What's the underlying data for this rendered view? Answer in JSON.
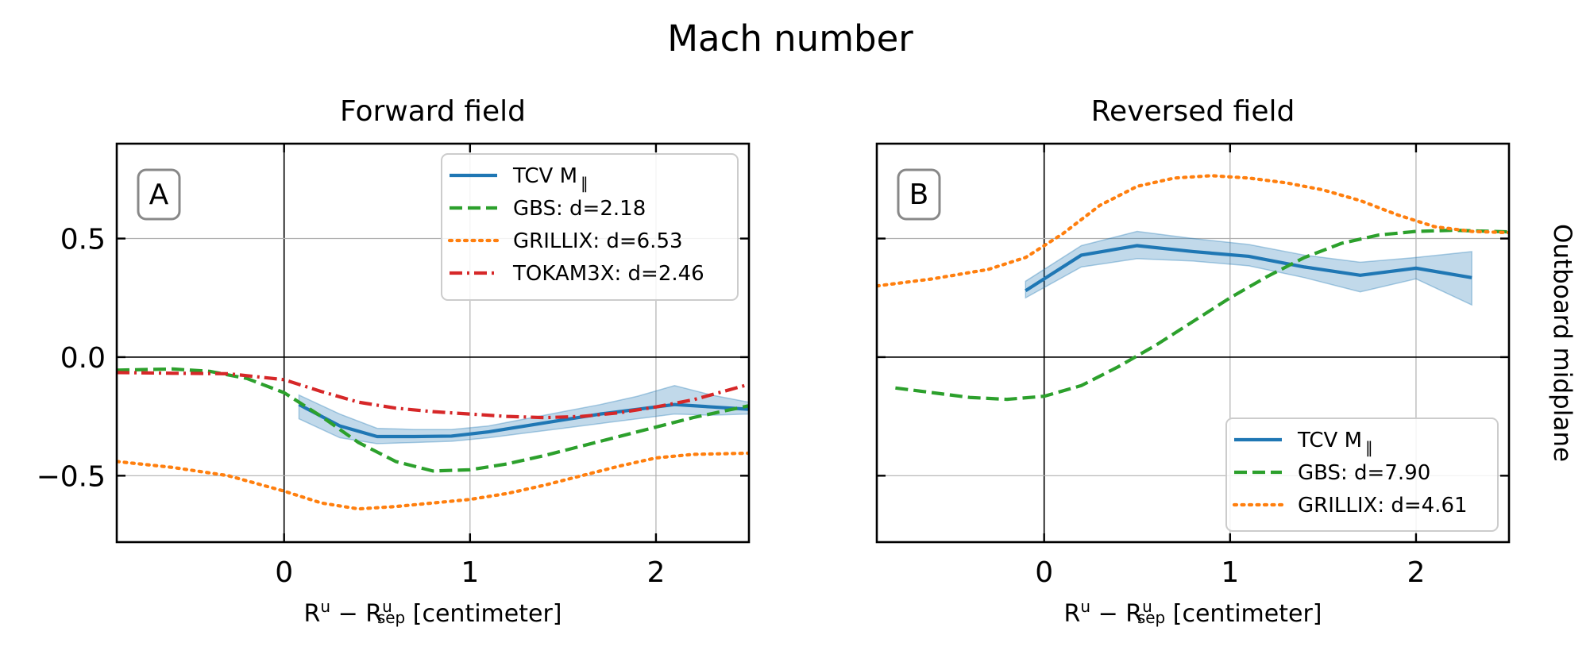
{
  "figure": {
    "title": "Mach number",
    "row_label": "Outboard midplane",
    "xlabel": {
      "base": "R",
      "sup1": "u",
      "minus": " − R",
      "sup2": "u",
      "sub2": "sep",
      "unit": " [centimeter]"
    }
  },
  "colors": {
    "tcv": "#1f77b4",
    "tcv_band": "#a9c8e4",
    "gbs": "#2ca02c",
    "grillix": "#ff7f0e",
    "tokam3x": "#d62728"
  },
  "chart_data": [
    {
      "type": "line",
      "panel_label": "A",
      "title": "Forward field",
      "xlim": [
        -0.9,
        2.5
      ],
      "ylim": [
        -0.78,
        0.9
      ],
      "xticks": [
        0,
        1,
        2
      ],
      "xtick_labels": [
        "0",
        "1",
        "2"
      ],
      "yticks": [
        -0.5,
        0.0,
        0.5
      ],
      "ytick_labels": [
        "−0.5",
        "0.0",
        "0.5"
      ],
      "grid": true,
      "legend_position": "upper-right",
      "series": [
        {
          "name": "TCV M",
          "name_sub": "∥",
          "style": "solid",
          "color_key": "tcv",
          "x": [
            0.08,
            0.3,
            0.5,
            0.7,
            0.9,
            1.1,
            1.3,
            1.5,
            1.7,
            1.9,
            2.1,
            2.3,
            2.5
          ],
          "y": [
            -0.2,
            -0.29,
            -0.335,
            -0.335,
            -0.333,
            -0.315,
            -0.29,
            -0.265,
            -0.24,
            -0.22,
            -0.2,
            -0.21,
            -0.22
          ],
          "band_low": [
            -0.26,
            -0.34,
            -0.365,
            -0.36,
            -0.355,
            -0.34,
            -0.32,
            -0.3,
            -0.28,
            -0.26,
            -0.24,
            -0.245,
            -0.24
          ],
          "band_high": [
            -0.16,
            -0.24,
            -0.3,
            -0.305,
            -0.305,
            -0.29,
            -0.26,
            -0.23,
            -0.2,
            -0.165,
            -0.12,
            -0.16,
            -0.19
          ]
        },
        {
          "name": "GBS: d=2.18",
          "style": "dashed",
          "color_key": "gbs",
          "x": [
            -0.9,
            -0.6,
            -0.4,
            -0.2,
            0.0,
            0.2,
            0.4,
            0.6,
            0.8,
            1.0,
            1.2,
            1.4,
            1.6,
            1.8,
            2.0,
            2.2,
            2.5
          ],
          "y": [
            -0.055,
            -0.05,
            -0.06,
            -0.09,
            -0.15,
            -0.25,
            -0.36,
            -0.44,
            -0.48,
            -0.475,
            -0.45,
            -0.415,
            -0.375,
            -0.335,
            -0.295,
            -0.255,
            -0.205
          ]
        },
        {
          "name": "GRILLIX: d=6.53",
          "style": "dotted",
          "color_key": "grillix",
          "x": [
            -0.9,
            -0.6,
            -0.3,
            0.0,
            0.2,
            0.4,
            0.6,
            0.8,
            1.0,
            1.2,
            1.4,
            1.6,
            1.8,
            2.0,
            2.2,
            2.5
          ],
          "y": [
            -0.44,
            -0.465,
            -0.5,
            -0.565,
            -0.615,
            -0.64,
            -0.63,
            -0.615,
            -0.6,
            -0.575,
            -0.54,
            -0.5,
            -0.46,
            -0.425,
            -0.41,
            -0.405
          ]
        },
        {
          "name": "TOKAM3X: d=2.46",
          "style": "dashdot",
          "color_key": "tokam3x",
          "x": [
            -0.9,
            -0.6,
            -0.3,
            0.0,
            0.2,
            0.4,
            0.6,
            0.8,
            1.0,
            1.2,
            1.4,
            1.6,
            1.8,
            2.0,
            2.2,
            2.5
          ],
          "y": [
            -0.065,
            -0.068,
            -0.07,
            -0.095,
            -0.145,
            -0.19,
            -0.215,
            -0.23,
            -0.24,
            -0.25,
            -0.255,
            -0.25,
            -0.235,
            -0.21,
            -0.18,
            -0.115
          ]
        }
      ]
    },
    {
      "type": "line",
      "panel_label": "B",
      "title": "Reversed field",
      "xlim": [
        -0.9,
        2.5
      ],
      "ylim": [
        -0.78,
        0.9
      ],
      "xticks": [
        0,
        1,
        2
      ],
      "xtick_labels": [
        "0",
        "1",
        "2"
      ],
      "yticks": [
        -0.5,
        0.0,
        0.5
      ],
      "ytick_labels": [
        "",
        "",
        ""
      ],
      "grid": true,
      "legend_position": "lower-right",
      "series": [
        {
          "name": "TCV M",
          "name_sub": "∥",
          "style": "solid",
          "color_key": "tcv",
          "x": [
            -0.1,
            0.2,
            0.5,
            0.8,
            1.1,
            1.4,
            1.7,
            2.0,
            2.3
          ],
          "y": [
            0.28,
            0.43,
            0.47,
            0.445,
            0.425,
            0.38,
            0.345,
            0.375,
            0.335
          ],
          "band_low": [
            0.25,
            0.38,
            0.415,
            0.405,
            0.385,
            0.335,
            0.275,
            0.33,
            0.22
          ],
          "band_high": [
            0.32,
            0.47,
            0.53,
            0.5,
            0.475,
            0.43,
            0.4,
            0.42,
            0.445
          ]
        },
        {
          "name": "GBS: d=7.90",
          "style": "dashed",
          "color_key": "gbs",
          "x": [
            -0.8,
            -0.6,
            -0.4,
            -0.2,
            0.0,
            0.2,
            0.4,
            0.6,
            0.8,
            1.0,
            1.2,
            1.4,
            1.6,
            1.8,
            2.0,
            2.2,
            2.5
          ],
          "y": [
            -0.13,
            -0.15,
            -0.17,
            -0.178,
            -0.165,
            -0.12,
            -0.04,
            0.05,
            0.15,
            0.25,
            0.34,
            0.42,
            0.48,
            0.515,
            0.53,
            0.535,
            0.528
          ]
        },
        {
          "name": "GRILLIX: d=4.61",
          "style": "dotted",
          "color_key": "grillix",
          "x": [
            -0.9,
            -0.6,
            -0.3,
            -0.1,
            0.1,
            0.3,
            0.5,
            0.7,
            0.9,
            1.1,
            1.3,
            1.5,
            1.7,
            1.9,
            2.1,
            2.3,
            2.5
          ],
          "y": [
            0.3,
            0.33,
            0.37,
            0.42,
            0.52,
            0.64,
            0.72,
            0.755,
            0.765,
            0.755,
            0.735,
            0.705,
            0.66,
            0.6,
            0.55,
            0.53,
            0.525
          ]
        }
      ]
    }
  ]
}
